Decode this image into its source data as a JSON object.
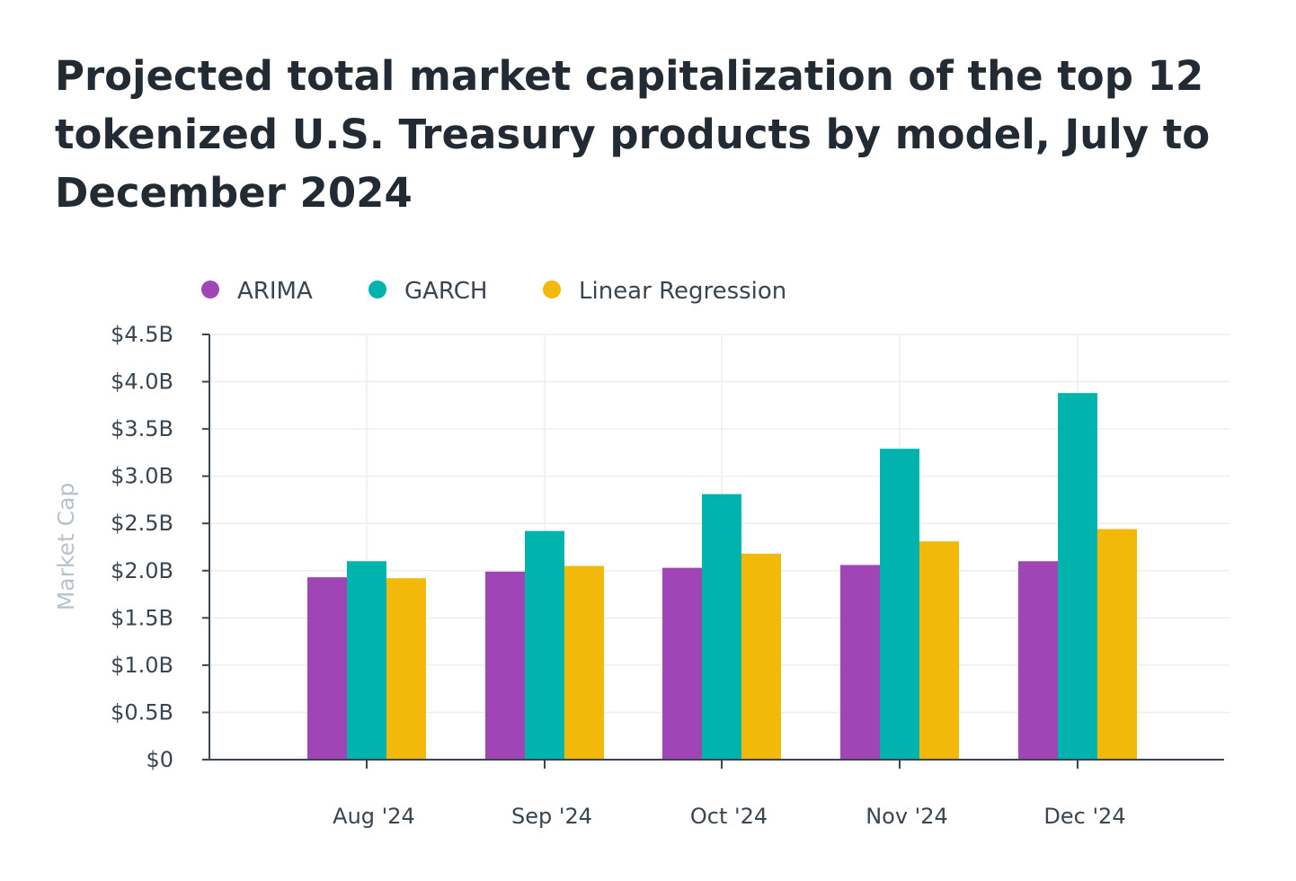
{
  "colors": {
    "ARIMA": "#a045b5",
    "GARCH": "#00b3ad",
    "Linear Regression": "#f2b90b",
    "grid": "#eceef0",
    "axis": "#3a4550"
  },
  "chart_data": {
    "type": "bar",
    "title": "Projected total market capitalization of the top 12 tokenized U.S. Treasury products by model, July to December 2024",
    "xlabel": "",
    "ylabel": "Market Cap",
    "categories": [
      "Aug '24",
      "Sep '24",
      "Oct '24",
      "Nov '24",
      "Dec '24"
    ],
    "series": [
      {
        "name": "ARIMA",
        "values": [
          1.93,
          1.99,
          2.03,
          2.06,
          2.1
        ]
      },
      {
        "name": "GARCH",
        "values": [
          2.1,
          2.42,
          2.81,
          3.29,
          3.88
        ]
      },
      {
        "name": "Linear Regression",
        "values": [
          1.92,
          2.05,
          2.18,
          2.31,
          2.44
        ]
      }
    ],
    "ylim": [
      0,
      4.5
    ],
    "yticks": [
      0,
      0.5,
      1.0,
      1.5,
      2.0,
      2.5,
      3.0,
      3.5,
      4.0,
      4.5
    ],
    "ytick_labels": [
      "$0",
      "$0.5B",
      "$1.0B",
      "$1.5B",
      "$2.0B",
      "$2.5B",
      "$3.0B",
      "$3.5B",
      "$4.0B",
      "$4.5B"
    ],
    "legend_position": "top-left",
    "grid": true
  }
}
